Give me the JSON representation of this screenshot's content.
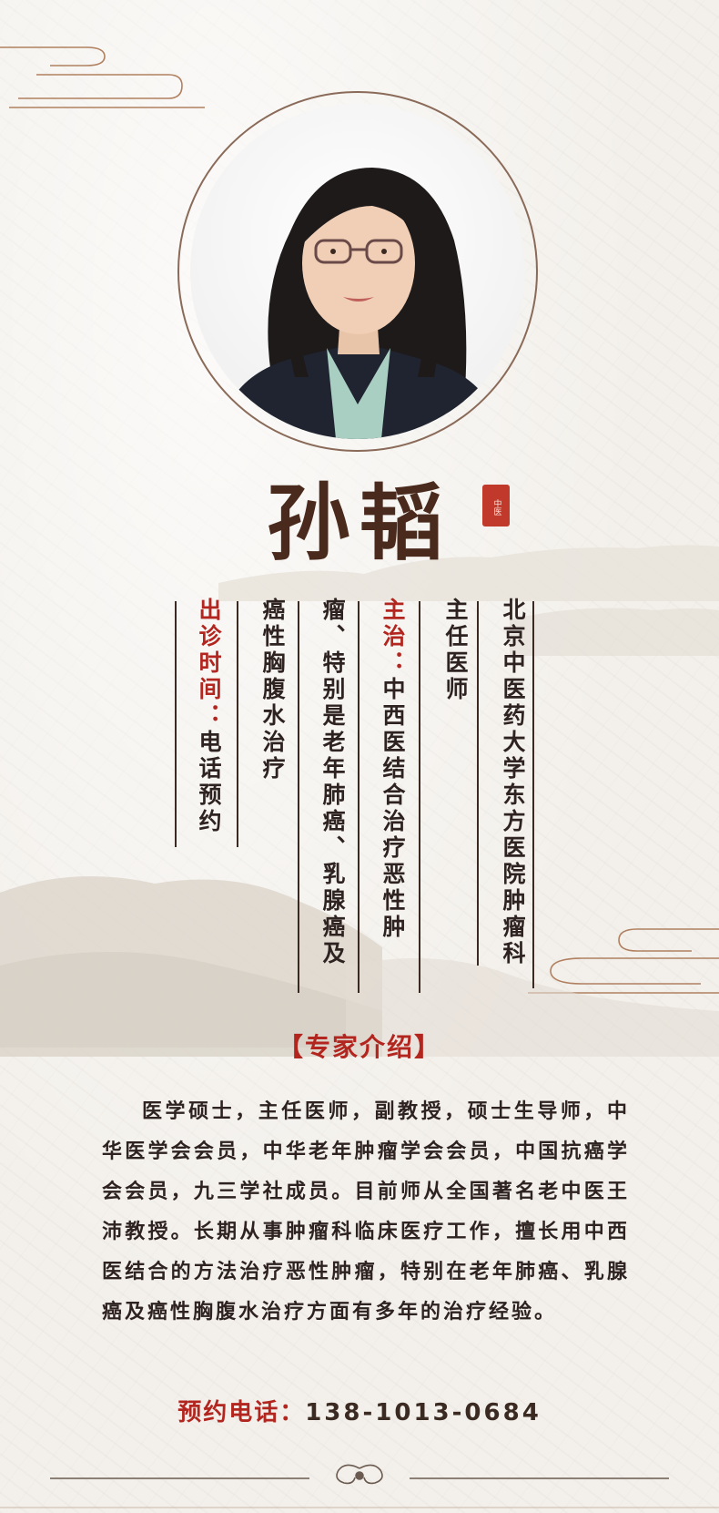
{
  "doctor": {
    "name": "孙韬",
    "seal_text": "中医"
  },
  "columns": {
    "institution": "北京中医药大学东方医院肿瘤科",
    "title": "主任医师",
    "specialty_label": "主治：",
    "specialty_text_1": "中西医结合治疗恶性肿",
    "specialty_text_2": "瘤、特别是老年肺癌、乳腺癌及",
    "specialty_text_3": "癌性胸腹水治疗",
    "schedule_label": "出诊时间：",
    "schedule_text": "电话预约"
  },
  "intro": {
    "title": "【专家介绍】",
    "body": "医学硕士，主任医师，副教授，硕士生导师，中华医学会会员，中华老年肿瘤学会会员，中国抗癌学会会员，九三学社成员。目前师从全国著名老中医王沛教授。长期从事肿瘤科临床医疗工作，擅长用中西医结合的方法治疗恶性肿瘤，特别在老年肺癌、乳腺癌及癌性胸腹水治疗方面有多年的治疗经验。"
  },
  "contact": {
    "label": "预约电话：",
    "number": "138-1013-0684"
  },
  "colors": {
    "accent_red": "#b2261f",
    "dark_brown": "#4a2a1c",
    "ring": "#8a6a58"
  }
}
